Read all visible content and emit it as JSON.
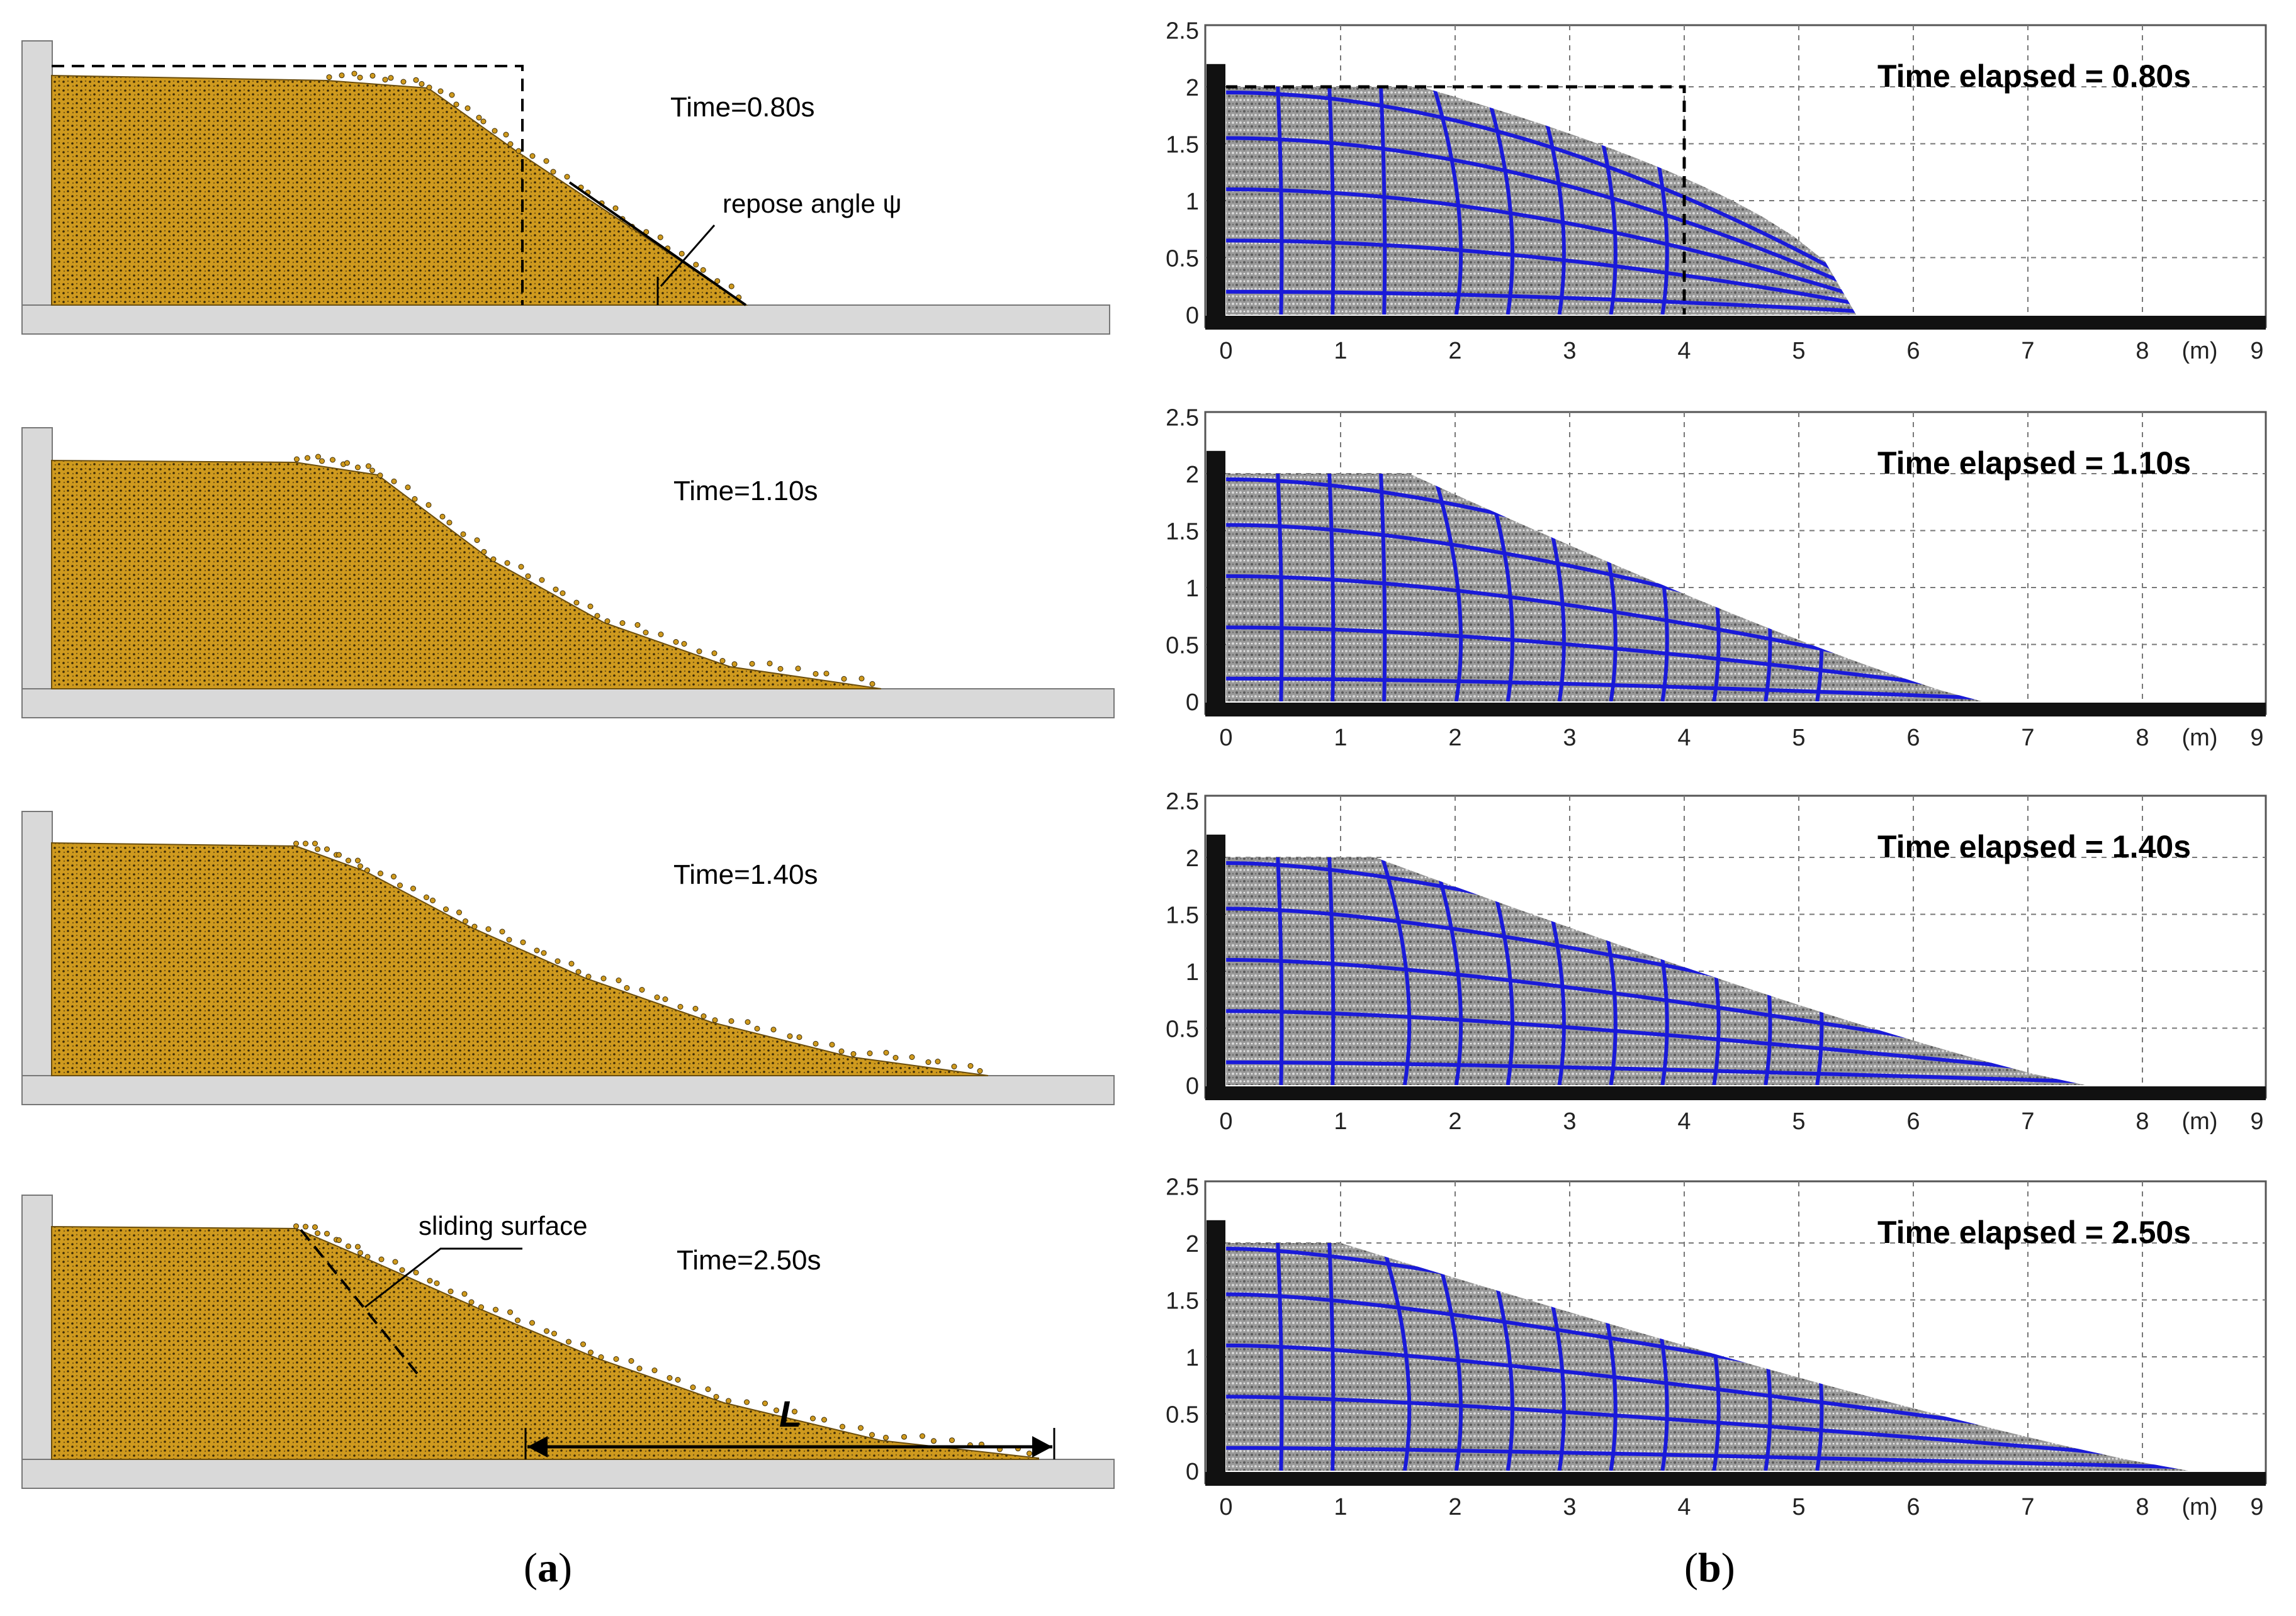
{
  "figure": {
    "panel_a": {
      "label_letter": "a",
      "frames": [
        {
          "time": "Time=0.80s",
          "annotation": "repose angle ψ"
        },
        {
          "time": "Time=1.10s"
        },
        {
          "time": "Time=1.40s"
        },
        {
          "time": "Time=2.50s",
          "annotation": "sliding surface",
          "length_symbol": "L"
        }
      ]
    },
    "panel_b": {
      "label_letter": "b",
      "unit_label": "(m)",
      "x_ticks": [
        "0",
        "1",
        "2",
        "3",
        "4",
        "5",
        "6",
        "7",
        "8",
        "9"
      ],
      "y_ticks": [
        "0",
        "0.5",
        "1",
        "1.5",
        "2",
        "2.5"
      ],
      "frames": [
        {
          "time": "Time elapsed = 0.80s"
        },
        {
          "time": "Time elapsed = 1.10s"
        },
        {
          "time": "Time elapsed = 1.40s"
        },
        {
          "time": "Time elapsed = 2.50s"
        }
      ]
    }
  },
  "colors": {
    "granular": "#cf9a1e",
    "mesh": "#1a1ad8",
    "particles": "#8c8c8c",
    "container": "#d9d9d9",
    "base": "#111111"
  }
}
